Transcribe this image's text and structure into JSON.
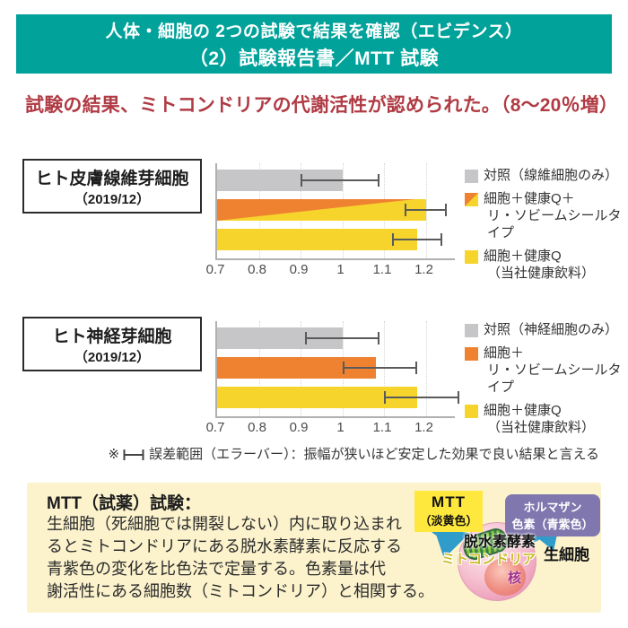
{
  "colors": {
    "teal": "#00a29a",
    "headline_red": "#b03b44",
    "gray_bar": "#c6c6c8",
    "orange_bar": "#ee8230",
    "yellow_bar": "#f6d42c",
    "axis": "#b0b0b0",
    "grid": "#d5d5d5",
    "error_bar": "#5a5a5a",
    "panel_bg": "#fcf3cd",
    "mtt_label_bg": "#ffe83e",
    "formazan_bg": "#7f77ae",
    "arrow_blue": "#2f9cc9"
  },
  "header": {
    "line1": "人体・細胞の 2つの試験で結果を確認（エビデンス）",
    "line2": "（2）試験報告書／MTT 試験"
  },
  "headline": "試験の結果、ミトコンドリアの代謝活性が認められた。（8～20％増）",
  "chart_data": [
    {
      "type": "bar",
      "orientation": "horizontal",
      "title": "ヒト皮膚線維芽細胞",
      "subtitle": "（2019/12）",
      "xlim": [
        0.7,
        1.27
      ],
      "xticks": [
        0.7,
        0.8,
        0.9,
        1,
        1.1,
        1.2
      ],
      "tick_labels": [
        "0.7",
        "0.8",
        "0.9",
        "1",
        "1.1",
        "1.2"
      ],
      "grid": "dotted-vertical",
      "legend_position": "right",
      "series": [
        {
          "name": "対照（線維細胞のみ）",
          "legend_lines": [
            "対照（線維細胞のみ）"
          ],
          "value": 1.0,
          "error": [
            0.9,
            1.09
          ],
          "style": "gray"
        },
        {
          "name": "細胞＋健康Q＋リ・ソビームシールタイプ",
          "legend_lines": [
            "細胞＋健康Q＋",
            "リ・ソビームシールタイプ"
          ],
          "value": 1.2,
          "error": [
            1.15,
            1.25
          ],
          "style": "orange-yellow-split"
        },
        {
          "name": "細胞＋健康Q（当社健康飲料）",
          "legend_lines": [
            "細胞＋健康Q",
            "（当社健康飲料）"
          ],
          "value": 1.18,
          "error": [
            1.12,
            1.24
          ],
          "style": "yellow"
        }
      ]
    },
    {
      "type": "bar",
      "orientation": "horizontal",
      "title": "ヒト神経芽細胞",
      "subtitle": "（2019/12）",
      "xlim": [
        0.7,
        1.27
      ],
      "xticks": [
        0.7,
        0.8,
        0.9,
        1,
        1.1,
        1.2
      ],
      "tick_labels": [
        "0.7",
        "0.8",
        "0.9",
        "1",
        "1.1",
        "1.2"
      ],
      "grid": "dotted-vertical",
      "legend_position": "right",
      "series": [
        {
          "name": "対照（神経細胞のみ）",
          "legend_lines": [
            "対照（神経細胞のみ）"
          ],
          "value": 1.0,
          "error": [
            0.91,
            1.09
          ],
          "style": "gray"
        },
        {
          "name": "細胞＋リ・ソビームシールタイプ",
          "legend_lines": [
            "細胞＋",
            "リ・ソビームシールタイプ"
          ],
          "value": 1.08,
          "error": [
            1.0,
            1.18
          ],
          "style": "orange"
        },
        {
          "name": "細胞＋健康Q（当社健康飲料）",
          "legend_lines": [
            "細胞＋健康Q",
            "（当社健康飲料）"
          ],
          "value": 1.18,
          "error": [
            1.1,
            1.28
          ],
          "style": "yellow"
        }
      ]
    }
  ],
  "note": {
    "marker": "※",
    "icon": "error-bar-icon",
    "text": "誤差範囲（エラーバー）：振幅が狭いほど安定した効果で良い結果と言える"
  },
  "mtt_panel": {
    "heading": "MTT（試薬）試験：",
    "body_lines": [
      "生細胞（死細胞では開裂しない）内に取り込まれ",
      "るとミトコンドリアにある脱水素酵素に反応する",
      "青紫色の変化を比色法で定量する。色素量は代",
      "謝活性にある細胞数（ミトコンドリア）と相関する。"
    ],
    "diagram": {
      "mtt_label_line1": "MTT",
      "mtt_label_line2": "（淡黄色）",
      "formazan_label_line1": "ホルマザン",
      "formazan_label_line2": "色素（青紫色）",
      "enzyme_label": "脱水素酵素",
      "mitochondria_label": "ミトコンドリア",
      "nucleus_label": "核",
      "cell_label": "生細胞"
    }
  }
}
